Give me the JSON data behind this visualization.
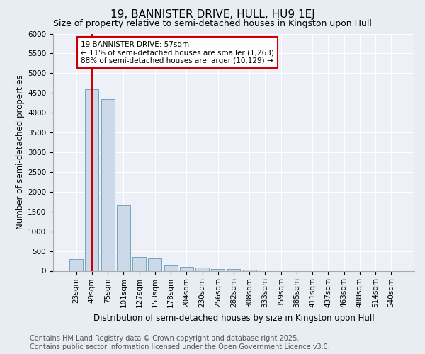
{
  "title": "19, BANNISTER DRIVE, HULL, HU9 1EJ",
  "subtitle": "Size of property relative to semi-detached houses in Kingston upon Hull",
  "xlabel": "Distribution of semi-detached houses by size in Kingston upon Hull",
  "ylabel": "Number of semi-detached properties",
  "categories": [
    "23sqm",
    "49sqm",
    "75sqm",
    "101sqm",
    "127sqm",
    "153sqm",
    "178sqm",
    "204sqm",
    "230sqm",
    "256sqm",
    "282sqm",
    "308sqm",
    "333sqm",
    "359sqm",
    "385sqm",
    "411sqm",
    "437sqm",
    "463sqm",
    "488sqm",
    "514sqm",
    "540sqm"
  ],
  "values": [
    300,
    4600,
    4350,
    1650,
    350,
    320,
    130,
    100,
    80,
    50,
    50,
    30,
    0,
    0,
    0,
    0,
    0,
    0,
    0,
    0,
    0
  ],
  "bar_color": "#ccd9e8",
  "bar_edge_color": "#6699bb",
  "annotation_title": "19 BANNISTER DRIVE: 57sqm",
  "annotation_line1": "← 11% of semi-detached houses are smaller (1,263)",
  "annotation_line2": "88% of semi-detached houses are larger (10,129) →",
  "annotation_box_facecolor": "#ffffff",
  "annotation_box_edgecolor": "#cc0000",
  "red_line_color": "#cc0000",
  "footer1": "Contains HM Land Registry data © Crown copyright and database right 2025.",
  "footer2": "Contains public sector information licensed under the Open Government Licence v3.0.",
  "ylim": [
    0,
    6000
  ],
  "yticks": [
    0,
    500,
    1000,
    1500,
    2000,
    2500,
    3000,
    3500,
    4000,
    4500,
    5000,
    5500,
    6000
  ],
  "bg_color": "#e8edf3",
  "plot_bg_color": "#edf1f7",
  "title_fontsize": 11,
  "subtitle_fontsize": 9,
  "axis_label_fontsize": 8.5,
  "tick_fontsize": 7.5,
  "annotation_fontsize": 7.5,
  "footer_fontsize": 7
}
